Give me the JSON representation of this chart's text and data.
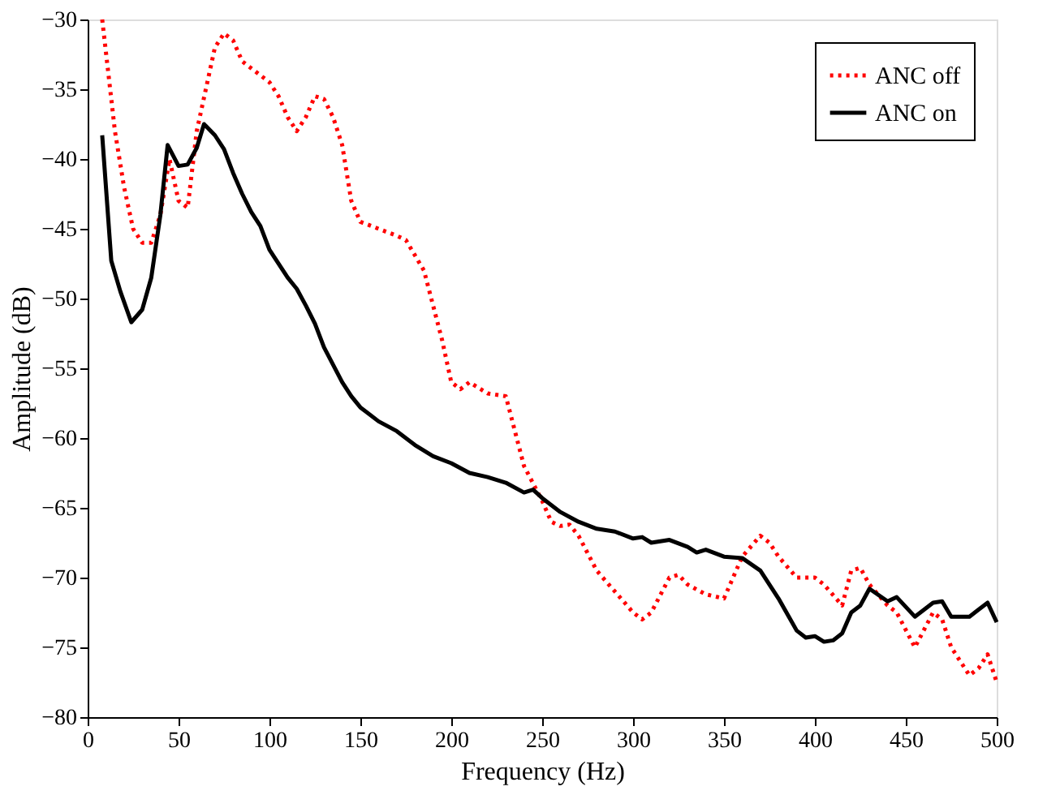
{
  "chart_data": {
    "type": "line",
    "xlabel": "Frequency (Hz)",
    "ylabel": "Amplitude (dB)",
    "xlim": [
      0,
      500
    ],
    "ylim": [
      -80,
      -30
    ],
    "xticks": [
      0,
      50,
      100,
      150,
      200,
      250,
      300,
      350,
      400,
      450,
      500
    ],
    "yticks": [
      -80,
      -75,
      -70,
      -65,
      -60,
      -55,
      -50,
      -45,
      -40,
      -35,
      -30
    ],
    "grid": false,
    "legend": "top right",
    "marker": "none",
    "series": [
      {
        "name": "ANC off",
        "color": "#ff0000",
        "line_style": "dotted",
        "x": [
          8,
          15,
          20,
          25,
          30,
          35,
          40,
          45,
          50,
          55,
          60,
          65,
          70,
          75,
          80,
          85,
          90,
          100,
          105,
          110,
          115,
          120,
          125,
          130,
          135,
          140,
          145,
          150,
          160,
          170,
          175,
          185,
          195,
          200,
          205,
          210,
          220,
          230,
          240,
          250,
          255,
          260,
          265,
          270,
          280,
          290,
          300,
          305,
          310,
          320,
          325,
          330,
          340,
          350,
          355,
          360,
          370,
          375,
          380,
          390,
          400,
          405,
          415,
          420,
          425,
          430,
          440,
          445,
          455,
          465,
          470,
          475,
          485,
          490,
          495,
          500
        ],
        "values": [
          -30,
          -38,
          -42,
          -45,
          -46,
          -46,
          -44,
          -40,
          -43,
          -43.5,
          -38,
          -35,
          -32,
          -31,
          -31.5,
          -33,
          -33.5,
          -34.5,
          -35.5,
          -37,
          -38,
          -37,
          -35.5,
          -35.7,
          -37,
          -39,
          -43,
          -44.5,
          -45,
          -45.5,
          -45.8,
          -48,
          -53,
          -56,
          -56.5,
          -56,
          -56.8,
          -57,
          -62,
          -64.5,
          -66,
          -66.3,
          -66.2,
          -67,
          -69.5,
          -71,
          -72.5,
          -73,
          -72.5,
          -70,
          -69.8,
          -70.5,
          -71.2,
          -71.5,
          -70,
          -68.5,
          -67,
          -67.5,
          -68.5,
          -70,
          -70,
          -70.5,
          -72,
          -69.5,
          -69.3,
          -70.5,
          -72,
          -72.5,
          -75,
          -72.5,
          -73,
          -75,
          -77,
          -76.5,
          -75.5,
          -77.5
        ]
      },
      {
        "name": "ANC on",
        "color": "#000000",
        "line_style": "solid",
        "x": [
          8,
          13,
          18,
          24,
          30,
          35,
          40,
          44,
          50,
          55,
          60,
          64,
          70,
          75,
          80,
          85,
          90,
          95,
          100,
          110,
          115,
          120,
          125,
          130,
          140,
          145,
          150,
          160,
          170,
          180,
          190,
          200,
          210,
          220,
          230,
          240,
          245,
          250,
          260,
          270,
          280,
          290,
          300,
          305,
          310,
          320,
          330,
          335,
          340,
          350,
          360,
          370,
          380,
          390,
          395,
          400,
          405,
          410,
          415,
          420,
          425,
          430,
          440,
          445,
          455,
          465,
          470,
          475,
          485,
          490,
          495,
          500
        ],
        "values": [
          -38.3,
          -47.3,
          -49.5,
          -51.7,
          -50.8,
          -48.5,
          -44,
          -39,
          -40.5,
          -40.4,
          -39.2,
          -37.5,
          -38.3,
          -39.3,
          -41,
          -42.5,
          -43.8,
          -44.8,
          -46.5,
          -48.5,
          -49.3,
          -50.5,
          -51.8,
          -53.5,
          -56,
          -57,
          -57.8,
          -58.8,
          -59.5,
          -60.5,
          -61.3,
          -61.8,
          -62.5,
          -62.8,
          -63.2,
          -63.9,
          -63.7,
          -64.3,
          -65.3,
          -66,
          -66.5,
          -66.7,
          -67.2,
          -67.1,
          -67.5,
          -67.3,
          -67.8,
          -68.2,
          -68,
          -68.5,
          -68.6,
          -69.5,
          -71.5,
          -73.8,
          -74.3,
          -74.2,
          -74.6,
          -74.5,
          -74,
          -72.5,
          -72,
          -70.8,
          -71.7,
          -71.4,
          -72.8,
          -71.8,
          -71.7,
          -72.8,
          -72.8,
          -72.3,
          -71.8,
          -73.2
        ]
      }
    ]
  }
}
